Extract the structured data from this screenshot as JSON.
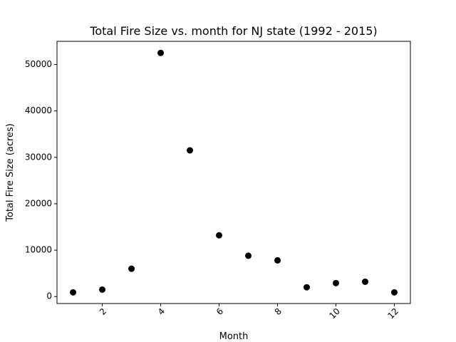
{
  "chart_data": {
    "type": "scatter",
    "title": "Total Fire Size vs. month for NJ state (1992 - 2015)",
    "xlabel": "Month",
    "ylabel": "Total Fire Size (acres)",
    "x": [
      1,
      2,
      3,
      4,
      5,
      6,
      7,
      8,
      9,
      10,
      11,
      12
    ],
    "y": [
      900,
      1500,
      6000,
      52500,
      31500,
      13200,
      8800,
      7800,
      2000,
      2900,
      3200,
      900
    ],
    "xlim": [
      0.45,
      12.55
    ],
    "ylim": [
      -1500,
      55000
    ],
    "xticks": [
      2,
      4,
      6,
      8,
      10,
      12
    ],
    "yticks": [
      0,
      10000,
      20000,
      30000,
      40000,
      50000
    ],
    "xtick_rotation": 45,
    "grid": false,
    "marker_color": "#000000"
  }
}
